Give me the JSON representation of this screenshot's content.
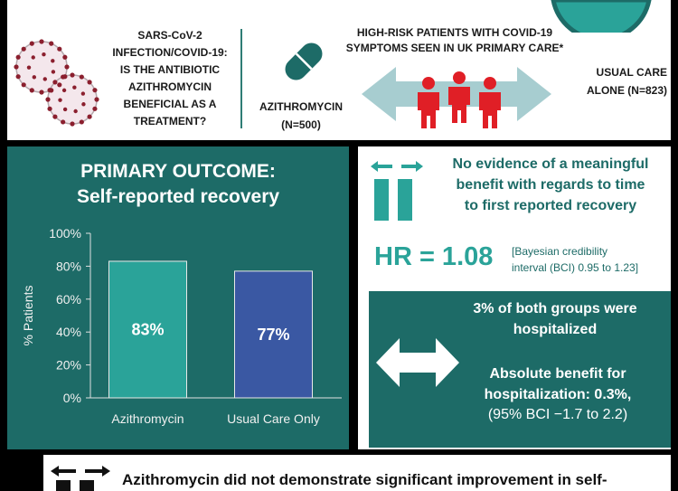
{
  "header": {
    "question": [
      "SARS-CoV-2",
      "INFECTION/COVID-19:",
      "IS THE ANTIBIOTIC",
      "AZITHROMYCIN",
      "BENEFICIAL AS A",
      "TREATMENT?"
    ],
    "population": [
      "HIGH-RISK PATIENTS WITH COVID-19",
      "SYMPTOMS SEEN IN UK PRIMARY CARE*"
    ],
    "arm1": [
      "AZITHROMYCIN",
      "(N=500)"
    ],
    "arm2": [
      "USUAL CARE",
      "ALONE (N=823)"
    ]
  },
  "colors": {
    "teal_dark": "#1d6b67",
    "teal_bar": "#2aa399",
    "blue_bar": "#3a58a3",
    "red_people": "#e01f26",
    "arrow_light": "#a7cdd0"
  },
  "icons": [
    "virus-icon",
    "pill-icon",
    "people-icon",
    "double-arrow-icon",
    "equal-icon"
  ],
  "chart_data": {
    "type": "bar",
    "title": "PRIMARY OUTCOME:",
    "subtitle": "Self-reported recovery",
    "categories": [
      "Azithromycin",
      "Usual Care Only"
    ],
    "values": [
      83,
      77
    ],
    "data_labels": [
      "83%",
      "77%"
    ],
    "ylabel": "% Patients",
    "ylim": [
      0,
      100
    ],
    "yticks": [
      0,
      20,
      40,
      60,
      80,
      100
    ],
    "ytick_labels": [
      "0%",
      "20%",
      "40%",
      "60%",
      "80%",
      "100%"
    ],
    "bar_colors": [
      "#2aa399",
      "#3a58a3"
    ],
    "grid": false,
    "legend": "none"
  },
  "findings": {
    "evidence": [
      "No evidence of a meaningful",
      "benefit with regards to time",
      "to first reported recovery"
    ],
    "hr": "HR = 1.08",
    "bci": [
      "[Bayesian credibility",
      "interval (BCI) 0.95 to 1.23]"
    ]
  },
  "hospitalization": {
    "line1": [
      "3% of both groups were",
      "hospitalized"
    ],
    "line2": [
      "Absolute benefit for",
      "hospitalization: 0.3%,"
    ],
    "line3": "(95% BCI −1.7 to 2.2)"
  },
  "conclusion": "Azithromycin did not demonstrate significant improvement in self-"
}
